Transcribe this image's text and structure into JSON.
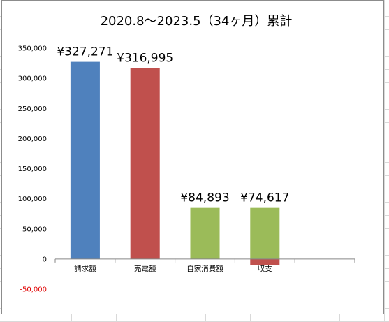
{
  "chart_data": {
    "type": "bar",
    "title": "2020.8～2023.5（34ヶ月）累計",
    "categories": [
      "請求額",
      "売電額",
      "自家消費額",
      "収支"
    ],
    "bars": [
      {
        "category": "請求額",
        "label": "¥327,271",
        "segments": [
          {
            "from": 0,
            "to": 327271,
            "color": "#4f81bd"
          }
        ]
      },
      {
        "category": "売電額",
        "label": "¥316,995",
        "segments": [
          {
            "from": 0,
            "to": 316995,
            "color": "#c0504d"
          }
        ]
      },
      {
        "category": "自家消費額",
        "label": "¥84,893",
        "segments": [
          {
            "from": 0,
            "to": 84893,
            "color": "#9bbb59"
          }
        ]
      },
      {
        "category": "収支",
        "label": "¥74,617",
        "segments": [
          {
            "from": 0,
            "to": 84893,
            "color": "#9bbb59"
          },
          {
            "from": -10276,
            "to": 0,
            "color": "#c0504d"
          }
        ]
      }
    ],
    "ylim": [
      -50000,
      350000
    ],
    "yticks": [
      {
        "value": 350000,
        "label": "350,000"
      },
      {
        "value": 300000,
        "label": "300,000"
      },
      {
        "value": 250000,
        "label": "250,000"
      },
      {
        "value": 200000,
        "label": "200,000"
      },
      {
        "value": 150000,
        "label": "150,000"
      },
      {
        "value": 100000,
        "label": "100,000"
      },
      {
        "value": 50000,
        "label": "50,000"
      },
      {
        "value": 0,
        "label": "0"
      },
      {
        "value": -50000,
        "label": "-50,000"
      }
    ],
    "grid": false,
    "legend": "none",
    "xlabel": "",
    "ylabel": ""
  }
}
